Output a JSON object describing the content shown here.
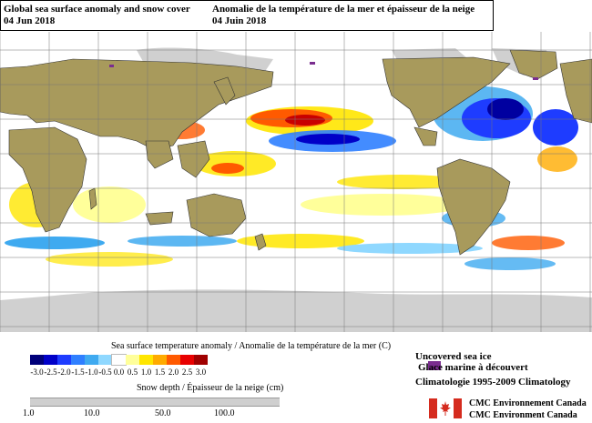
{
  "title": {
    "en_line1": "Global sea surface anomaly and snow cover",
    "en_line2": "04 Jun 2018",
    "fr_line1": "Anomalie de la température de la mer et épaisseur de la neige",
    "fr_line2": "04 Juin 2018"
  },
  "legend": {
    "sst_title": "Sea surface temperature anomaly / Anomalie de la température de la mer (C)",
    "sst_labels": [
      "-3.0",
      "-2.5",
      "-2.0",
      "-1.5",
      "-1.0",
      "-0.5",
      "0.0",
      "0.5",
      "1.0",
      "1.5",
      "2.0",
      "2.5",
      "3.0"
    ],
    "sst_colors": [
      "#00007a",
      "#0000c8",
      "#1e3cff",
      "#2f7fff",
      "#3faaf0",
      "#8fd8ff",
      "#ffffff",
      "#ffff9a",
      "#ffe600",
      "#ffab00",
      "#ff5a00",
      "#e80000",
      "#a00000"
    ],
    "snow_title": "Snow depth / Épaisseur de la neige (cm)",
    "snow_labels": [
      "1.0",
      "10.0",
      "50.0",
      "100.0"
    ]
  },
  "ice": {
    "line1": "Uncovered sea ice",
    "line2": "Glace marine à découvert",
    "color": "#7a2d8f"
  },
  "climatology": "Climatologie 1995-2009 Climatology",
  "credit": {
    "line1": "CMC Environnement Canada",
    "line2": "CMC Environment Canada"
  },
  "map_colors": {
    "ocean": "#ffffff",
    "land": "#a89a5c",
    "snow": "#d0d0d0",
    "grid": "#777777"
  }
}
